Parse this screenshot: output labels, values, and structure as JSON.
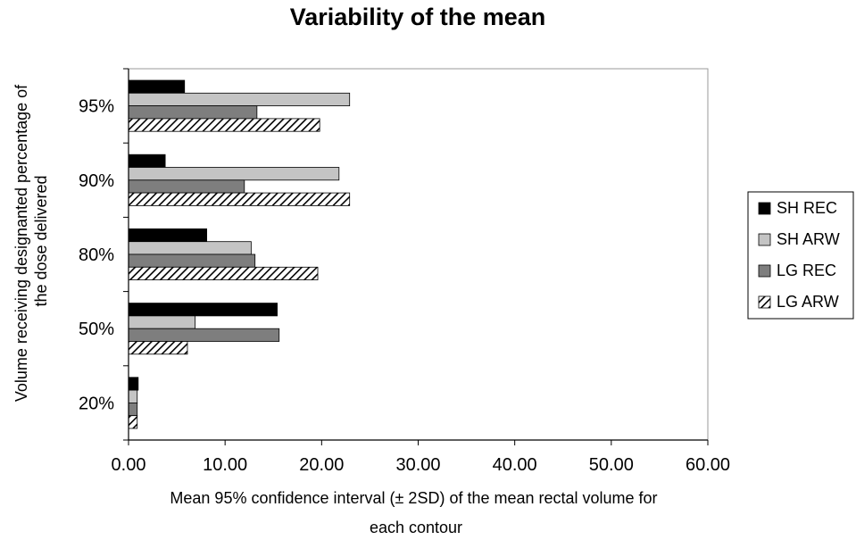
{
  "chart_data": {
    "type": "bar",
    "orientation": "horizontal",
    "title": "Variability of the mean",
    "xlabel_lines": [
      "Mean 95% confidence interval (± 2SD) of the mean rectal volume for",
      "each contour"
    ],
    "ylabel_lines": [
      "Volume receiving designanted percentage of",
      "the dose delivered"
    ],
    "xlim": [
      0,
      60
    ],
    "xticks": [
      "0.00",
      "10.00",
      "20.00",
      "30.00",
      "40.00",
      "50.00",
      "60.00"
    ],
    "categories": [
      "95%",
      "90%",
      "80%",
      "50%",
      "20%"
    ],
    "series": [
      {
        "name": "SH REC",
        "values": [
          5.8,
          3.8,
          8.1,
          15.4,
          1.0
        ],
        "fill": "#000000",
        "pattern": "solid"
      },
      {
        "name": "SH ARW",
        "values": [
          22.9,
          21.8,
          12.7,
          6.9,
          0.9
        ],
        "fill": "#c4c4c4",
        "pattern": "solid"
      },
      {
        "name": "LG REC",
        "values": [
          13.3,
          12.0,
          13.1,
          15.6,
          0.9
        ],
        "fill": "#7e7e7e",
        "pattern": "solid"
      },
      {
        "name": "LG ARW",
        "values": [
          19.8,
          22.9,
          19.6,
          6.1,
          0.9
        ],
        "fill": "#ffffff",
        "pattern": "hatch"
      }
    ],
    "grid": false,
    "legend_position": "right"
  }
}
